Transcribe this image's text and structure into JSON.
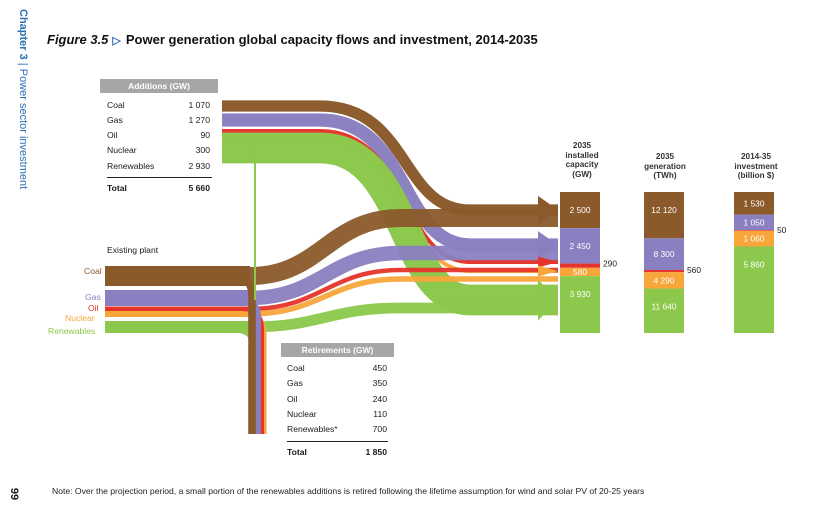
{
  "side_label": {
    "chapter": "Chapter 3",
    "separator": " | ",
    "title": "Power sector investment"
  },
  "page_number": "99",
  "figure": {
    "number": "Figure 3.5",
    "title": "Power generation global capacity flows and investment, 2014-2035"
  },
  "note": "Note: Over the projection period, a small portion of the renewables additions is retired following the lifetime assumption for wind and solar PV of 20-25 years",
  "colors": {
    "coal": "#8b5a2b",
    "gas": "#8a7fc0",
    "oil": "#e5342a",
    "nuclear": "#f8a53a",
    "renewables": "#8cc84b",
    "table_header": "#a6a6a6",
    "accent": "#2d6fb4"
  },
  "existing_plant": {
    "title": "Existing plant",
    "labels": {
      "coal": "Coal",
      "gas": "Gas",
      "oil": "Oil",
      "nuclear": "Nuclear",
      "renewables": "Renewables"
    }
  },
  "additions": {
    "title": "Additions (GW)",
    "rows": [
      {
        "name": "Coal",
        "value": "1 070"
      },
      {
        "name": "Gas",
        "value": "1 270"
      },
      {
        "name": "Oil",
        "value": "90"
      },
      {
        "name": "Nuclear",
        "value": "300"
      },
      {
        "name": "Renewables",
        "value": "2 930"
      }
    ],
    "total_label": "Total",
    "total_value": "5 660"
  },
  "retirements": {
    "title": "Retirements (GW)",
    "rows": [
      {
        "name": "Coal",
        "value": "450"
      },
      {
        "name": "Gas",
        "value": "350"
      },
      {
        "name": "Oil",
        "value": "240"
      },
      {
        "name": "Nuclear",
        "value": "110"
      },
      {
        "name": "Renewables*",
        "value": "700"
      }
    ],
    "total_label": "Total",
    "total_value": "1 850"
  },
  "chart_data": [
    {
      "type": "sankey",
      "title": "Power generation global capacity flows, 2014-2035",
      "sources": [
        "Existing plant",
        "Additions"
      ],
      "targets": [
        "2035 installed capacity",
        "Retirements"
      ],
      "categories": [
        "Coal",
        "Gas",
        "Oil",
        "Nuclear",
        "Renewables"
      ],
      "additions_gw": [
        1070,
        1270,
        90,
        300,
        2930
      ],
      "retirements_gw": [
        450,
        350,
        240,
        110,
        700
      ]
    },
    {
      "type": "bar",
      "stacked": true,
      "columns": [
        {
          "label": "2035\ninstalled\ncapacity\n(GW)",
          "segments": [
            {
              "name": "Coal",
              "value": 2500,
              "label": "2 500"
            },
            {
              "name": "Gas",
              "value": 2450,
              "label": "2 450"
            },
            {
              "name": "Oil",
              "value": 290,
              "label": "290",
              "outside": true
            },
            {
              "name": "Nuclear",
              "value": 580,
              "label": "580"
            },
            {
              "name": "Renewables",
              "value": 3930,
              "label": "3 930"
            }
          ]
        },
        {
          "label": "2035\ngeneration\n(TWh)",
          "segments": [
            {
              "name": "Coal",
              "value": 12120,
              "label": "12 120"
            },
            {
              "name": "Gas",
              "value": 8300,
              "label": "8 300"
            },
            {
              "name": "Oil",
              "value": 560,
              "label": "560",
              "outside": true
            },
            {
              "name": "Nuclear",
              "value": 4290,
              "label": "4 290"
            },
            {
              "name": "Renewables",
              "value": 11640,
              "label": "11 640"
            }
          ]
        },
        {
          "label": "2014-35\ninvestment\n(billion $)",
          "segments": [
            {
              "name": "Coal",
              "value": 1530,
              "label": "1 530"
            },
            {
              "name": "Gas",
              "value": 1050,
              "label": "1 050"
            },
            {
              "name": "Oil",
              "value": 50,
              "label": "50",
              "outside": true
            },
            {
              "name": "Nuclear",
              "value": 1060,
              "label": "1 060"
            },
            {
              "name": "Renewables",
              "value": 5860,
              "label": "5 860"
            }
          ]
        }
      ]
    }
  ]
}
